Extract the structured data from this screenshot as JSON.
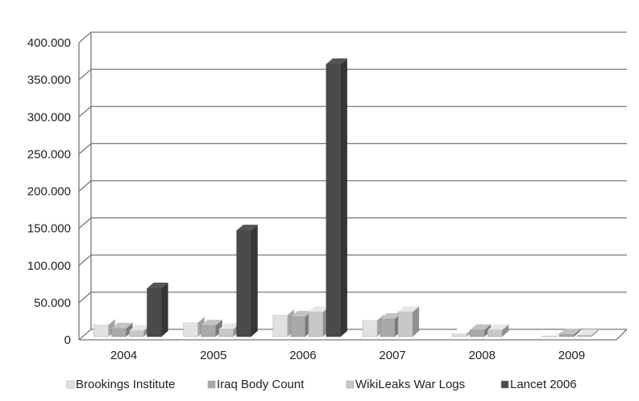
{
  "chart_data": {
    "type": "bar",
    "categories": [
      "2004",
      "2005",
      "2006",
      "2007",
      "2008",
      "2009"
    ],
    "series": [
      {
        "name": "Brookings Institute",
        "values": [
          16000,
          19000,
          29000,
          22000,
          4000,
          1000
        ]
      },
      {
        "name": "Iraq Body Count",
        "values": [
          11000,
          15000,
          27000,
          24000,
          9000,
          3000
        ]
      },
      {
        "name": "WikiLeaks War Logs",
        "values": [
          8000,
          10000,
          33000,
          33000,
          9000,
          2000
        ]
      },
      {
        "name": "Lancet 2006",
        "values": [
          65000,
          143000,
          367000,
          null,
          null,
          null
        ]
      }
    ],
    "yticks": [
      "0",
      "50.000",
      "100.000",
      "150.000",
      "200.000",
      "250.000",
      "300.000",
      "350.000",
      "400.000"
    ],
    "ylim": [
      0,
      400000
    ],
    "grid": true,
    "legend_position": "bottom",
    "colors": [
      "#e2e2e2",
      "#a9a9a9",
      "#c8c8c8",
      "#4a4a4a"
    ]
  }
}
